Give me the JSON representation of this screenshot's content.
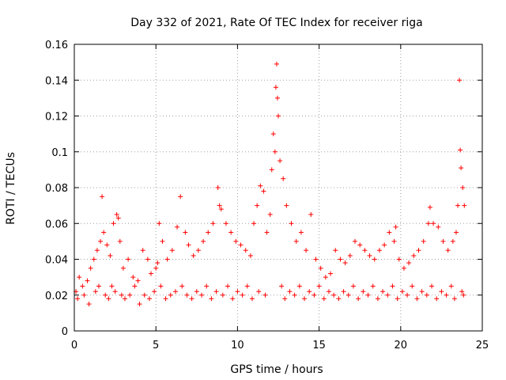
{
  "chart_data": {
    "type": "scatter",
    "title": "Day 332 of 2021, Rate Of TEC Index for receiver riga",
    "xlabel": "GPS time / hours",
    "ylabel": "ROTI / TECUs",
    "xlim": [
      0,
      25
    ],
    "ylim": [
      0,
      0.16
    ],
    "xticks": [
      0,
      5,
      10,
      15,
      20,
      25
    ],
    "yticks": [
      0,
      0.02,
      0.04,
      0.06,
      0.08,
      0.1,
      0.12,
      0.14,
      0.16
    ],
    "xtick_labels": [
      "0",
      "5",
      "10",
      "15",
      "20",
      "25"
    ],
    "ytick_labels": [
      "0",
      "0.02",
      "0.04",
      "0.06",
      "0.08",
      "0.1",
      "0.12",
      "0.14",
      "0.16"
    ],
    "grid": true,
    "marker": "+",
    "series_color": "#ff0000",
    "series": [
      {
        "name": "ROTI",
        "x": [
          0.1,
          0.3,
          0.5,
          0.8,
          1.0,
          1.2,
          1.4,
          1.6,
          1.7,
          1.8,
          2.0,
          2.2,
          2.4,
          2.6,
          2.7,
          2.8,
          3.0,
          3.3,
          3.6,
          3.9,
          4.2,
          4.5,
          4.7,
          5.0,
          5.1,
          5.2,
          5.4,
          5.7,
          6.0,
          6.3,
          6.5,
          6.8,
          7.0,
          7.3,
          7.6,
          7.9,
          8.2,
          8.5,
          8.8,
          8.9,
          9.0,
          9.3,
          9.6,
          9.9,
          10.2,
          10.5,
          10.8,
          11.0,
          11.2,
          11.4,
          11.6,
          11.8,
          12.0,
          12.1,
          12.2,
          12.3,
          12.35,
          12.4,
          12.45,
          12.5,
          12.6,
          12.8,
          13.0,
          13.3,
          13.6,
          13.9,
          14.2,
          14.5,
          14.8,
          15.1,
          15.4,
          15.7,
          16.0,
          16.3,
          16.6,
          16.9,
          17.2,
          17.5,
          17.8,
          18.1,
          18.4,
          18.7,
          19.0,
          19.3,
          19.6,
          19.7,
          19.9,
          20.2,
          20.5,
          20.8,
          21.1,
          21.4,
          21.7,
          21.8,
          22.0,
          22.3,
          22.6,
          22.9,
          23.2,
          23.4,
          23.5,
          23.6,
          23.65,
          23.7,
          23.8,
          23.9,
          0.2,
          0.6,
          0.9,
          1.3,
          1.5,
          1.9,
          2.1,
          2.3,
          2.5,
          2.9,
          3.1,
          3.4,
          3.7,
          4.0,
          4.3,
          4.6,
          4.9,
          5.3,
          5.6,
          5.9,
          6.2,
          6.6,
          6.9,
          7.2,
          7.5,
          7.8,
          8.1,
          8.4,
          8.7,
          9.1,
          9.4,
          9.7,
          10.0,
          10.3,
          10.6,
          10.9,
          11.3,
          11.7,
          12.7,
          12.9,
          13.2,
          13.5,
          13.8,
          14.1,
          14.4,
          14.7,
          15.0,
          15.3,
          15.6,
          15.9,
          16.2,
          16.5,
          16.8,
          17.1,
          17.4,
          17.7,
          18.0,
          18.3,
          18.6,
          18.9,
          19.2,
          19.5,
          19.8,
          20.1,
          20.4,
          20.7,
          21.0,
          21.3,
          21.6,
          21.9,
          22.2,
          22.5,
          22.8,
          23.1,
          23.3,
          23.75,
          23.85
        ],
        "y": [
          0.022,
          0.03,
          0.025,
          0.028,
          0.035,
          0.04,
          0.045,
          0.05,
          0.075,
          0.055,
          0.048,
          0.042,
          0.06,
          0.065,
          0.063,
          0.05,
          0.035,
          0.04,
          0.03,
          0.028,
          0.045,
          0.04,
          0.032,
          0.035,
          0.038,
          0.06,
          0.05,
          0.04,
          0.045,
          0.058,
          0.075,
          0.055,
          0.048,
          0.042,
          0.045,
          0.05,
          0.055,
          0.06,
          0.08,
          0.07,
          0.068,
          0.06,
          0.055,
          0.05,
          0.048,
          0.045,
          0.042,
          0.06,
          0.07,
          0.081,
          0.078,
          0.055,
          0.065,
          0.09,
          0.11,
          0.1,
          0.136,
          0.149,
          0.13,
          0.12,
          0.095,
          0.085,
          0.07,
          0.06,
          0.05,
          0.055,
          0.045,
          0.065,
          0.04,
          0.035,
          0.03,
          0.032,
          0.045,
          0.04,
          0.038,
          0.042,
          0.05,
          0.048,
          0.045,
          0.042,
          0.04,
          0.045,
          0.048,
          0.055,
          0.05,
          0.058,
          0.04,
          0.035,
          0.038,
          0.042,
          0.045,
          0.05,
          0.06,
          0.069,
          0.06,
          0.058,
          0.05,
          0.045,
          0.05,
          0.055,
          0.07,
          0.14,
          0.101,
          0.091,
          0.08,
          0.07,
          0.018,
          0.02,
          0.015,
          0.022,
          0.025,
          0.02,
          0.018,
          0.025,
          0.022,
          0.02,
          0.018,
          0.02,
          0.025,
          0.015,
          0.02,
          0.018,
          0.022,
          0.025,
          0.018,
          0.02,
          0.022,
          0.025,
          0.02,
          0.018,
          0.022,
          0.02,
          0.025,
          0.018,
          0.022,
          0.02,
          0.025,
          0.018,
          0.022,
          0.02,
          0.025,
          0.018,
          0.022,
          0.02,
          0.025,
          0.018,
          0.022,
          0.02,
          0.025,
          0.018,
          0.022,
          0.02,
          0.025,
          0.018,
          0.022,
          0.02,
          0.018,
          0.022,
          0.02,
          0.025,
          0.018,
          0.022,
          0.02,
          0.025,
          0.018,
          0.022,
          0.02,
          0.025,
          0.018,
          0.022,
          0.02,
          0.025,
          0.018,
          0.022,
          0.02,
          0.025,
          0.018,
          0.022,
          0.02,
          0.025,
          0.018,
          0.022,
          0.02
        ]
      }
    ]
  }
}
